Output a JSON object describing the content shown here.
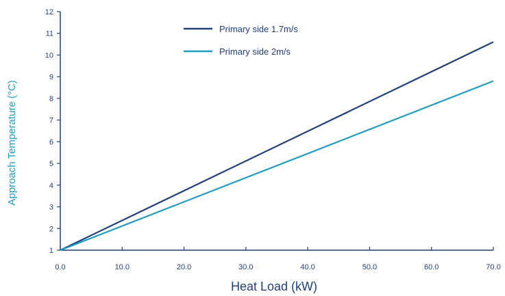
{
  "chart_data": {
    "type": "line",
    "title": "",
    "xlabel": "Heat Load (kW)",
    "ylabel": "Approach Temperature (°C)",
    "x_ticks": [
      "0.0",
      "10.0",
      "20.0",
      "30.0",
      "40.0",
      "50.0",
      "60.0",
      "70.0"
    ],
    "y_ticks": [
      "1",
      "2",
      "3",
      "4",
      "5",
      "6",
      "7",
      "8",
      "9",
      "10",
      "11",
      "12"
    ],
    "xlim": [
      0,
      70
    ],
    "ylim": [
      1,
      12
    ],
    "grid": false,
    "legend_position": "top",
    "series": [
      {
        "name": "Primary side 1.7m/s",
        "color": "#1f3f7a",
        "x": [
          0,
          70
        ],
        "y": [
          1,
          10.6
        ]
      },
      {
        "name": "Primary side 2m/s",
        "color": "#1e9cc0",
        "x": [
          0,
          70
        ],
        "y": [
          1,
          8.8
        ]
      }
    ]
  }
}
